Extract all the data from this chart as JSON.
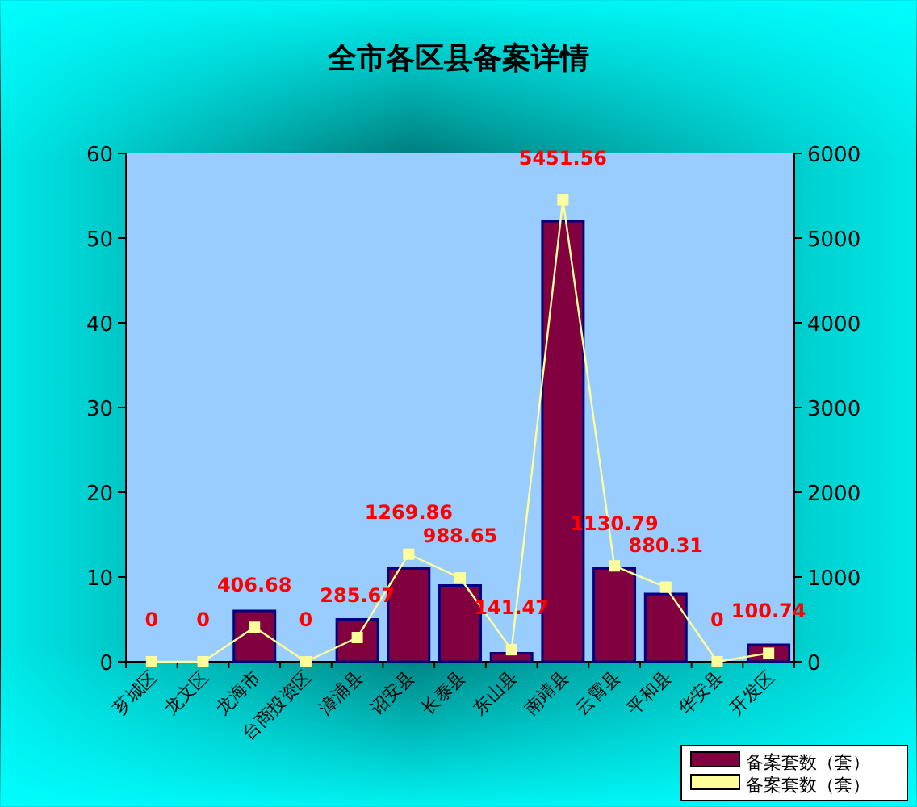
{
  "chart_data": {
    "type": "bar",
    "title": "全市各区县备案详情",
    "categories": [
      "芗城区",
      "龙文区",
      "龙海市",
      "台商投资区",
      "漳浦县",
      "诏安县",
      "长泰县",
      "东山县",
      "南靖县",
      "云霄县",
      "平和县",
      "华安县",
      "开发区"
    ],
    "series": [
      {
        "name": "备案套数（套）",
        "color": "#800040",
        "values": [
          0,
          0,
          6,
          0,
          5,
          11,
          9,
          1,
          52,
          11,
          8,
          0,
          2
        ]
      },
      {
        "name": "备案套数（套）",
        "type": "line",
        "axis": "y2",
        "color": "#ffff99",
        "values": [
          0,
          0,
          406.68,
          0,
          285.67,
          1269.86,
          988.65,
          141.47,
          5451.56,
          1130.79,
          880.31,
          0,
          100.74
        ],
        "value_labels": [
          "0",
          "0",
          "406.68",
          "0",
          "285.67",
          "1269.86",
          "988.65",
          "141.47",
          "5451.56",
          "1130.79",
          "880.31",
          "0",
          "100.74"
        ]
      }
    ],
    "ylim": [
      0,
      60
    ],
    "yticks": [
      0,
      10,
      20,
      30,
      40,
      50,
      60
    ],
    "y2lim": [
      0,
      6000
    ],
    "y2ticks": [
      0,
      1000,
      2000,
      3000,
      4000,
      5000,
      6000
    ],
    "legend": "bottom right",
    "marker": "square"
  }
}
